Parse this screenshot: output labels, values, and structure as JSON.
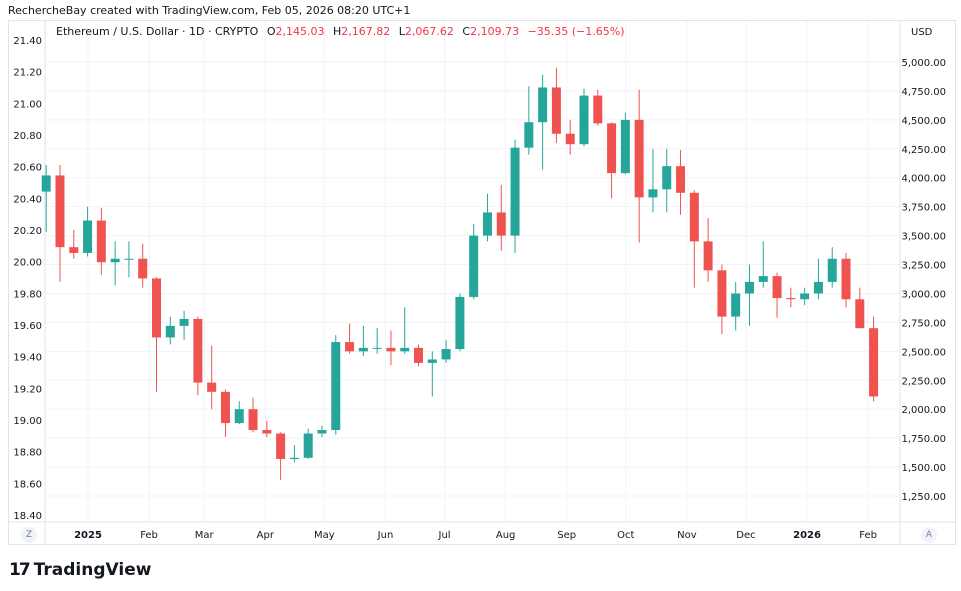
{
  "caption": "RechercheBay created with TradingView.com, Feb 05, 2026 08:20 UTC+1",
  "legend": {
    "symbol": "Ethereum / U.S. Dollar · 1D · CRYPTO",
    "o_label": "O",
    "o": "2,145.03",
    "h_label": "H",
    "h": "2,167.82",
    "l_label": "L",
    "l": "2,067.62",
    "c_label": "C",
    "c": "2,109.73",
    "change": "−35.35 (−1.65%)"
  },
  "currency": "USD",
  "z_button": "Z",
  "a_button": "A",
  "brand": "TradingView",
  "colors": {
    "up": "#26a69a",
    "down": "#ef5350",
    "grid": "#f0f3fa",
    "text": "#131722",
    "legend_value": "#f23645"
  },
  "chart_data": {
    "type": "candlestick",
    "right_axis": {
      "ticks": [
        1250,
        1500,
        1750,
        2000,
        2250,
        2500,
        2750,
        3000,
        3250,
        3500,
        3750,
        4000,
        4250,
        4500,
        4750,
        5000
      ],
      "labels": [
        "1,250.00",
        "1,500.00",
        "1,750.00",
        "2,000.00",
        "2,250.00",
        "2,500.00",
        "2,750.00",
        "3,000.00",
        "3,250.00",
        "3,500.00",
        "3,750.00",
        "4,000.00",
        "4,250.00",
        "4,500.00",
        "4,750.00",
        "5,000.00"
      ]
    },
    "left_axis": {
      "labels": [
        "21.40",
        "21.20",
        "21.00",
        "20.80",
        "20.60",
        "20.40",
        "20.20",
        "20.00",
        "19.80",
        "19.60",
        "19.40",
        "19.20",
        "19.00",
        "18.80",
        "18.60",
        "18.40"
      ]
    },
    "x_axis": {
      "labels": [
        {
          "text": "2025",
          "date": "2025-01-01",
          "bold": true
        },
        {
          "text": "Feb",
          "date": "2025-02-01"
        },
        {
          "text": "Mar",
          "date": "2025-03-01"
        },
        {
          "text": "Apr",
          "date": "2025-04-01"
        },
        {
          "text": "May",
          "date": "2025-05-01"
        },
        {
          "text": "Jun",
          "date": "2025-06-01"
        },
        {
          "text": "Jul",
          "date": "2025-07-01"
        },
        {
          "text": "Aug",
          "date": "2025-08-01"
        },
        {
          "text": "Sep",
          "date": "2025-09-01"
        },
        {
          "text": "Oct",
          "date": "2025-10-01"
        },
        {
          "text": "Nov",
          "date": "2025-11-01"
        },
        {
          "text": "Dec",
          "date": "2025-12-01"
        },
        {
          "text": "2026",
          "date": "2026-01-01",
          "bold": true
        },
        {
          "text": "Feb",
          "date": "2026-02-01"
        }
      ]
    },
    "grid": true,
    "candles": [
      {
        "d": "2024-12-09",
        "o": 3880,
        "h": 4110,
        "l": 3530,
        "c": 4020
      },
      {
        "d": "2024-12-16",
        "o": 4020,
        "h": 4110,
        "l": 3100,
        "c": 3400
      },
      {
        "d": "2024-12-23",
        "o": 3400,
        "h": 3550,
        "l": 3300,
        "c": 3350
      },
      {
        "d": "2024-12-30",
        "o": 3350,
        "h": 3750,
        "l": 3320,
        "c": 3630
      },
      {
        "d": "2025-01-06",
        "o": 3630,
        "h": 3740,
        "l": 3160,
        "c": 3270
      },
      {
        "d": "2025-01-13",
        "o": 3270,
        "h": 3450,
        "l": 3070,
        "c": 3300
      },
      {
        "d": "2025-01-20",
        "o": 3300,
        "h": 3450,
        "l": 3140,
        "c": 3300
      },
      {
        "d": "2025-01-27",
        "o": 3300,
        "h": 3430,
        "l": 3050,
        "c": 3130
      },
      {
        "d": "2025-02-03",
        "o": 3130,
        "h": 3140,
        "l": 2150,
        "c": 2620
      },
      {
        "d": "2025-02-10",
        "o": 2620,
        "h": 2800,
        "l": 2560,
        "c": 2720
      },
      {
        "d": "2025-02-17",
        "o": 2720,
        "h": 2850,
        "l": 2600,
        "c": 2780
      },
      {
        "d": "2025-02-24",
        "o": 2780,
        "h": 2800,
        "l": 2120,
        "c": 2230
      },
      {
        "d": "2025-03-03",
        "o": 2230,
        "h": 2550,
        "l": 2000,
        "c": 2150
      },
      {
        "d": "2025-03-10",
        "o": 2150,
        "h": 2170,
        "l": 1760,
        "c": 1880
      },
      {
        "d": "2025-03-17",
        "o": 1880,
        "h": 2070,
        "l": 1870,
        "c": 2000
      },
      {
        "d": "2025-03-24",
        "o": 2000,
        "h": 2100,
        "l": 1800,
        "c": 1820
      },
      {
        "d": "2025-03-31",
        "o": 1820,
        "h": 1900,
        "l": 1760,
        "c": 1790
      },
      {
        "d": "2025-04-07",
        "o": 1790,
        "h": 1800,
        "l": 1390,
        "c": 1570
      },
      {
        "d": "2025-04-14",
        "o": 1570,
        "h": 1690,
        "l": 1540,
        "c": 1580
      },
      {
        "d": "2025-04-21",
        "o": 1580,
        "h": 1830,
        "l": 1570,
        "c": 1790
      },
      {
        "d": "2025-04-28",
        "o": 1790,
        "h": 1860,
        "l": 1760,
        "c": 1820
      },
      {
        "d": "2025-05-05",
        "o": 1820,
        "h": 2640,
        "l": 1780,
        "c": 2580
      },
      {
        "d": "2025-05-12",
        "o": 2580,
        "h": 2740,
        "l": 2480,
        "c": 2500
      },
      {
        "d": "2025-05-19",
        "o": 2500,
        "h": 2720,
        "l": 2460,
        "c": 2530
      },
      {
        "d": "2025-05-26",
        "o": 2530,
        "h": 2700,
        "l": 2480,
        "c": 2530
      },
      {
        "d": "2025-06-02",
        "o": 2530,
        "h": 2680,
        "l": 2380,
        "c": 2500
      },
      {
        "d": "2025-06-09",
        "o": 2500,
        "h": 2880,
        "l": 2480,
        "c": 2530
      },
      {
        "d": "2025-06-16",
        "o": 2530,
        "h": 2560,
        "l": 2370,
        "c": 2400
      },
      {
        "d": "2025-06-23",
        "o": 2400,
        "h": 2500,
        "l": 2110,
        "c": 2430
      },
      {
        "d": "2025-06-30",
        "o": 2430,
        "h": 2600,
        "l": 2400,
        "c": 2520
      },
      {
        "d": "2025-07-07",
        "o": 2520,
        "h": 3000,
        "l": 2500,
        "c": 2970
      },
      {
        "d": "2025-07-14",
        "o": 2970,
        "h": 3600,
        "l": 2950,
        "c": 3500
      },
      {
        "d": "2025-07-21",
        "o": 3500,
        "h": 3860,
        "l": 3450,
        "c": 3700
      },
      {
        "d": "2025-07-28",
        "o": 3700,
        "h": 3940,
        "l": 3370,
        "c": 3500
      },
      {
        "d": "2025-08-04",
        "o": 3500,
        "h": 4330,
        "l": 3350,
        "c": 4260
      },
      {
        "d": "2025-08-11",
        "o": 4260,
        "h": 4790,
        "l": 4200,
        "c": 4480
      },
      {
        "d": "2025-08-18",
        "o": 4480,
        "h": 4890,
        "l": 4070,
        "c": 4780
      },
      {
        "d": "2025-08-25",
        "o": 4780,
        "h": 4950,
        "l": 4300,
        "c": 4380
      },
      {
        "d": "2025-09-01",
        "o": 4380,
        "h": 4500,
        "l": 4200,
        "c": 4290
      },
      {
        "d": "2025-09-08",
        "o": 4290,
        "h": 4770,
        "l": 4270,
        "c": 4710
      },
      {
        "d": "2025-09-15",
        "o": 4710,
        "h": 4760,
        "l": 4450,
        "c": 4470
      },
      {
        "d": "2025-09-22",
        "o": 4470,
        "h": 4480,
        "l": 3820,
        "c": 4040
      },
      {
        "d": "2025-09-29",
        "o": 4040,
        "h": 4560,
        "l": 4030,
        "c": 4500
      },
      {
        "d": "2025-10-06",
        "o": 4500,
        "h": 4760,
        "l": 3440,
        "c": 3830
      },
      {
        "d": "2025-10-13",
        "o": 3830,
        "h": 4250,
        "l": 3700,
        "c": 3900
      },
      {
        "d": "2025-10-20",
        "o": 3900,
        "h": 4250,
        "l": 3700,
        "c": 4100
      },
      {
        "d": "2025-10-27",
        "o": 4100,
        "h": 4240,
        "l": 3680,
        "c": 3870
      },
      {
        "d": "2025-11-03",
        "o": 3870,
        "h": 3890,
        "l": 3050,
        "c": 3450
      },
      {
        "d": "2025-11-10",
        "o": 3450,
        "h": 3650,
        "l": 3100,
        "c": 3200
      },
      {
        "d": "2025-11-17",
        "o": 3200,
        "h": 3250,
        "l": 2650,
        "c": 2800
      },
      {
        "d": "2025-11-24",
        "o": 2800,
        "h": 3100,
        "l": 2680,
        "c": 3000
      },
      {
        "d": "2025-12-01",
        "o": 3000,
        "h": 3250,
        "l": 2720,
        "c": 3100
      },
      {
        "d": "2025-12-08",
        "o": 3100,
        "h": 3450,
        "l": 3050,
        "c": 3150
      },
      {
        "d": "2025-12-15",
        "o": 3150,
        "h": 3180,
        "l": 2790,
        "c": 2960
      },
      {
        "d": "2025-12-22",
        "o": 2960,
        "h": 3050,
        "l": 2880,
        "c": 2950
      },
      {
        "d": "2025-12-29",
        "o": 2950,
        "h": 3050,
        "l": 2900,
        "c": 3000
      },
      {
        "d": "2026-01-05",
        "o": 3000,
        "h": 3300,
        "l": 2950,
        "c": 3100
      },
      {
        "d": "2026-01-12",
        "o": 3100,
        "h": 3400,
        "l": 3050,
        "c": 3300
      },
      {
        "d": "2026-01-19",
        "o": 3300,
        "h": 3350,
        "l": 2880,
        "c": 2950
      },
      {
        "d": "2026-01-26",
        "o": 2950,
        "h": 3050,
        "l": 2700,
        "c": 2700
      },
      {
        "d": "2026-02-02",
        "o": 2700,
        "h": 2800,
        "l": 2068,
        "c": 2110
      }
    ]
  }
}
